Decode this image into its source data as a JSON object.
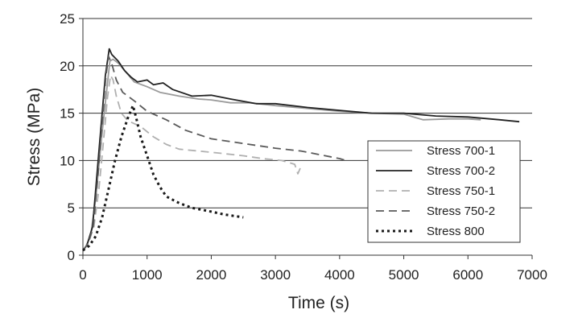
{
  "chart_data": {
    "type": "line",
    "title": "",
    "xlabel": "Time (s)",
    "ylabel": "Stress (MPa)",
    "xlim": [
      0,
      7000
    ],
    "ylim": [
      0,
      25
    ],
    "x_ticks": [
      0,
      1000,
      2000,
      3000,
      4000,
      5000,
      6000,
      7000
    ],
    "y_ticks": [
      0,
      5,
      10,
      15,
      20,
      25
    ],
    "x_tick_labels": [
      "0",
      "1000",
      "2000",
      "3000",
      "4000",
      "5000",
      "6000",
      "7000"
    ],
    "y_tick_labels": [
      "0",
      "5",
      "10",
      "15",
      "20",
      "25"
    ],
    "grid": "horizontal",
    "legend_position": "right",
    "series": [
      {
        "name": "Stress 700-1",
        "color": "#9a9a9a",
        "dash": "solid",
        "points": [
          [
            0,
            0.5
          ],
          [
            50,
            1
          ],
          [
            120,
            2
          ],
          [
            200,
            6
          ],
          [
            300,
            13
          ],
          [
            380,
            18
          ],
          [
            420,
            20.5
          ],
          [
            470,
            20.7
          ],
          [
            550,
            20.3
          ],
          [
            650,
            19.5
          ],
          [
            800,
            18.3
          ],
          [
            1000,
            17.8
          ],
          [
            1200,
            17.2
          ],
          [
            1500,
            16.8
          ],
          [
            1800,
            16.5
          ],
          [
            2000,
            16.4
          ],
          [
            2300,
            16.1
          ],
          [
            2600,
            16.1
          ],
          [
            3000,
            15.8
          ],
          [
            3500,
            15.5
          ],
          [
            4000,
            15.2
          ],
          [
            4500,
            15.0
          ],
          [
            5000,
            14.9
          ],
          [
            5300,
            14.3
          ],
          [
            5700,
            14.4
          ],
          [
            6000,
            14.4
          ],
          [
            6200,
            14.3
          ]
        ]
      },
      {
        "name": "Stress 700-2",
        "color": "#222222",
        "dash": "solid",
        "points": [
          [
            0,
            0.5
          ],
          [
            60,
            1
          ],
          [
            150,
            3
          ],
          [
            250,
            11
          ],
          [
            350,
            19
          ],
          [
            410,
            21.8
          ],
          [
            450,
            21.2
          ],
          [
            550,
            20.5
          ],
          [
            650,
            19.5
          ],
          [
            750,
            18.8
          ],
          [
            850,
            18.3
          ],
          [
            1000,
            18.5
          ],
          [
            1100,
            18.0
          ],
          [
            1250,
            18.2
          ],
          [
            1400,
            17.5
          ],
          [
            1700,
            16.8
          ],
          [
            2000,
            16.9
          ],
          [
            2300,
            16.5
          ],
          [
            2700,
            16.0
          ],
          [
            3000,
            16.0
          ],
          [
            3500,
            15.6
          ],
          [
            4000,
            15.3
          ],
          [
            4500,
            15.0
          ],
          [
            5000,
            15.0
          ],
          [
            5500,
            14.7
          ],
          [
            6000,
            14.6
          ],
          [
            6500,
            14.3
          ],
          [
            6800,
            14.1
          ]
        ]
      },
      {
        "name": "Stress 750-1",
        "color": "#b0b0b0",
        "dash": "10,6",
        "points": [
          [
            0,
            0.5
          ],
          [
            80,
            1.2
          ],
          [
            170,
            3
          ],
          [
            250,
            7
          ],
          [
            320,
            12
          ],
          [
            380,
            16.5
          ],
          [
            430,
            19
          ],
          [
            470,
            18.5
          ],
          [
            520,
            16.8
          ],
          [
            600,
            15
          ],
          [
            700,
            14.2
          ],
          [
            900,
            13.6
          ],
          [
            1100,
            12.5
          ],
          [
            1300,
            11.7
          ],
          [
            1500,
            11.2
          ],
          [
            1800,
            11.0
          ],
          [
            2100,
            10.8
          ],
          [
            2500,
            10.5
          ],
          [
            2800,
            10.2
          ],
          [
            3100,
            10.0
          ],
          [
            3300,
            9.6
          ],
          [
            3350,
            8.6
          ],
          [
            3400,
            9.4
          ]
        ]
      },
      {
        "name": "Stress 750-2",
        "color": "#5a5a5a",
        "dash": "10,6",
        "points": [
          [
            0,
            0.5
          ],
          [
            80,
            1.2
          ],
          [
            160,
            3
          ],
          [
            230,
            8
          ],
          [
            300,
            14
          ],
          [
            360,
            19
          ],
          [
            400,
            21
          ],
          [
            450,
            20.2
          ],
          [
            520,
            18.5
          ],
          [
            620,
            17.2
          ],
          [
            800,
            16.3
          ],
          [
            1000,
            15.2
          ],
          [
            1300,
            14.3
          ],
          [
            1600,
            13.2
          ],
          [
            2000,
            12.3
          ],
          [
            2300,
            12.0
          ],
          [
            2700,
            11.6
          ],
          [
            3000,
            11.3
          ],
          [
            3400,
            11.0
          ],
          [
            3700,
            10.6
          ],
          [
            4000,
            10.2
          ],
          [
            4100,
            10.0
          ]
        ]
      },
      {
        "name": "Stress 800",
        "color": "#1a1a1a",
        "dash": "3,4",
        "points": [
          [
            0,
            0.5
          ],
          [
            100,
            1
          ],
          [
            200,
            2
          ],
          [
            300,
            4
          ],
          [
            400,
            7
          ],
          [
            500,
            10
          ],
          [
            600,
            12.5
          ],
          [
            700,
            14.5
          ],
          [
            780,
            15.8
          ],
          [
            830,
            14.5
          ],
          [
            900,
            12.5
          ],
          [
            1000,
            10.5
          ],
          [
            1100,
            8.5
          ],
          [
            1200,
            7.2
          ],
          [
            1300,
            6.2
          ],
          [
            1500,
            5.5
          ],
          [
            1700,
            5.0
          ],
          [
            2000,
            4.6
          ],
          [
            2200,
            4.3
          ],
          [
            2500,
            4.0
          ]
        ]
      }
    ]
  }
}
